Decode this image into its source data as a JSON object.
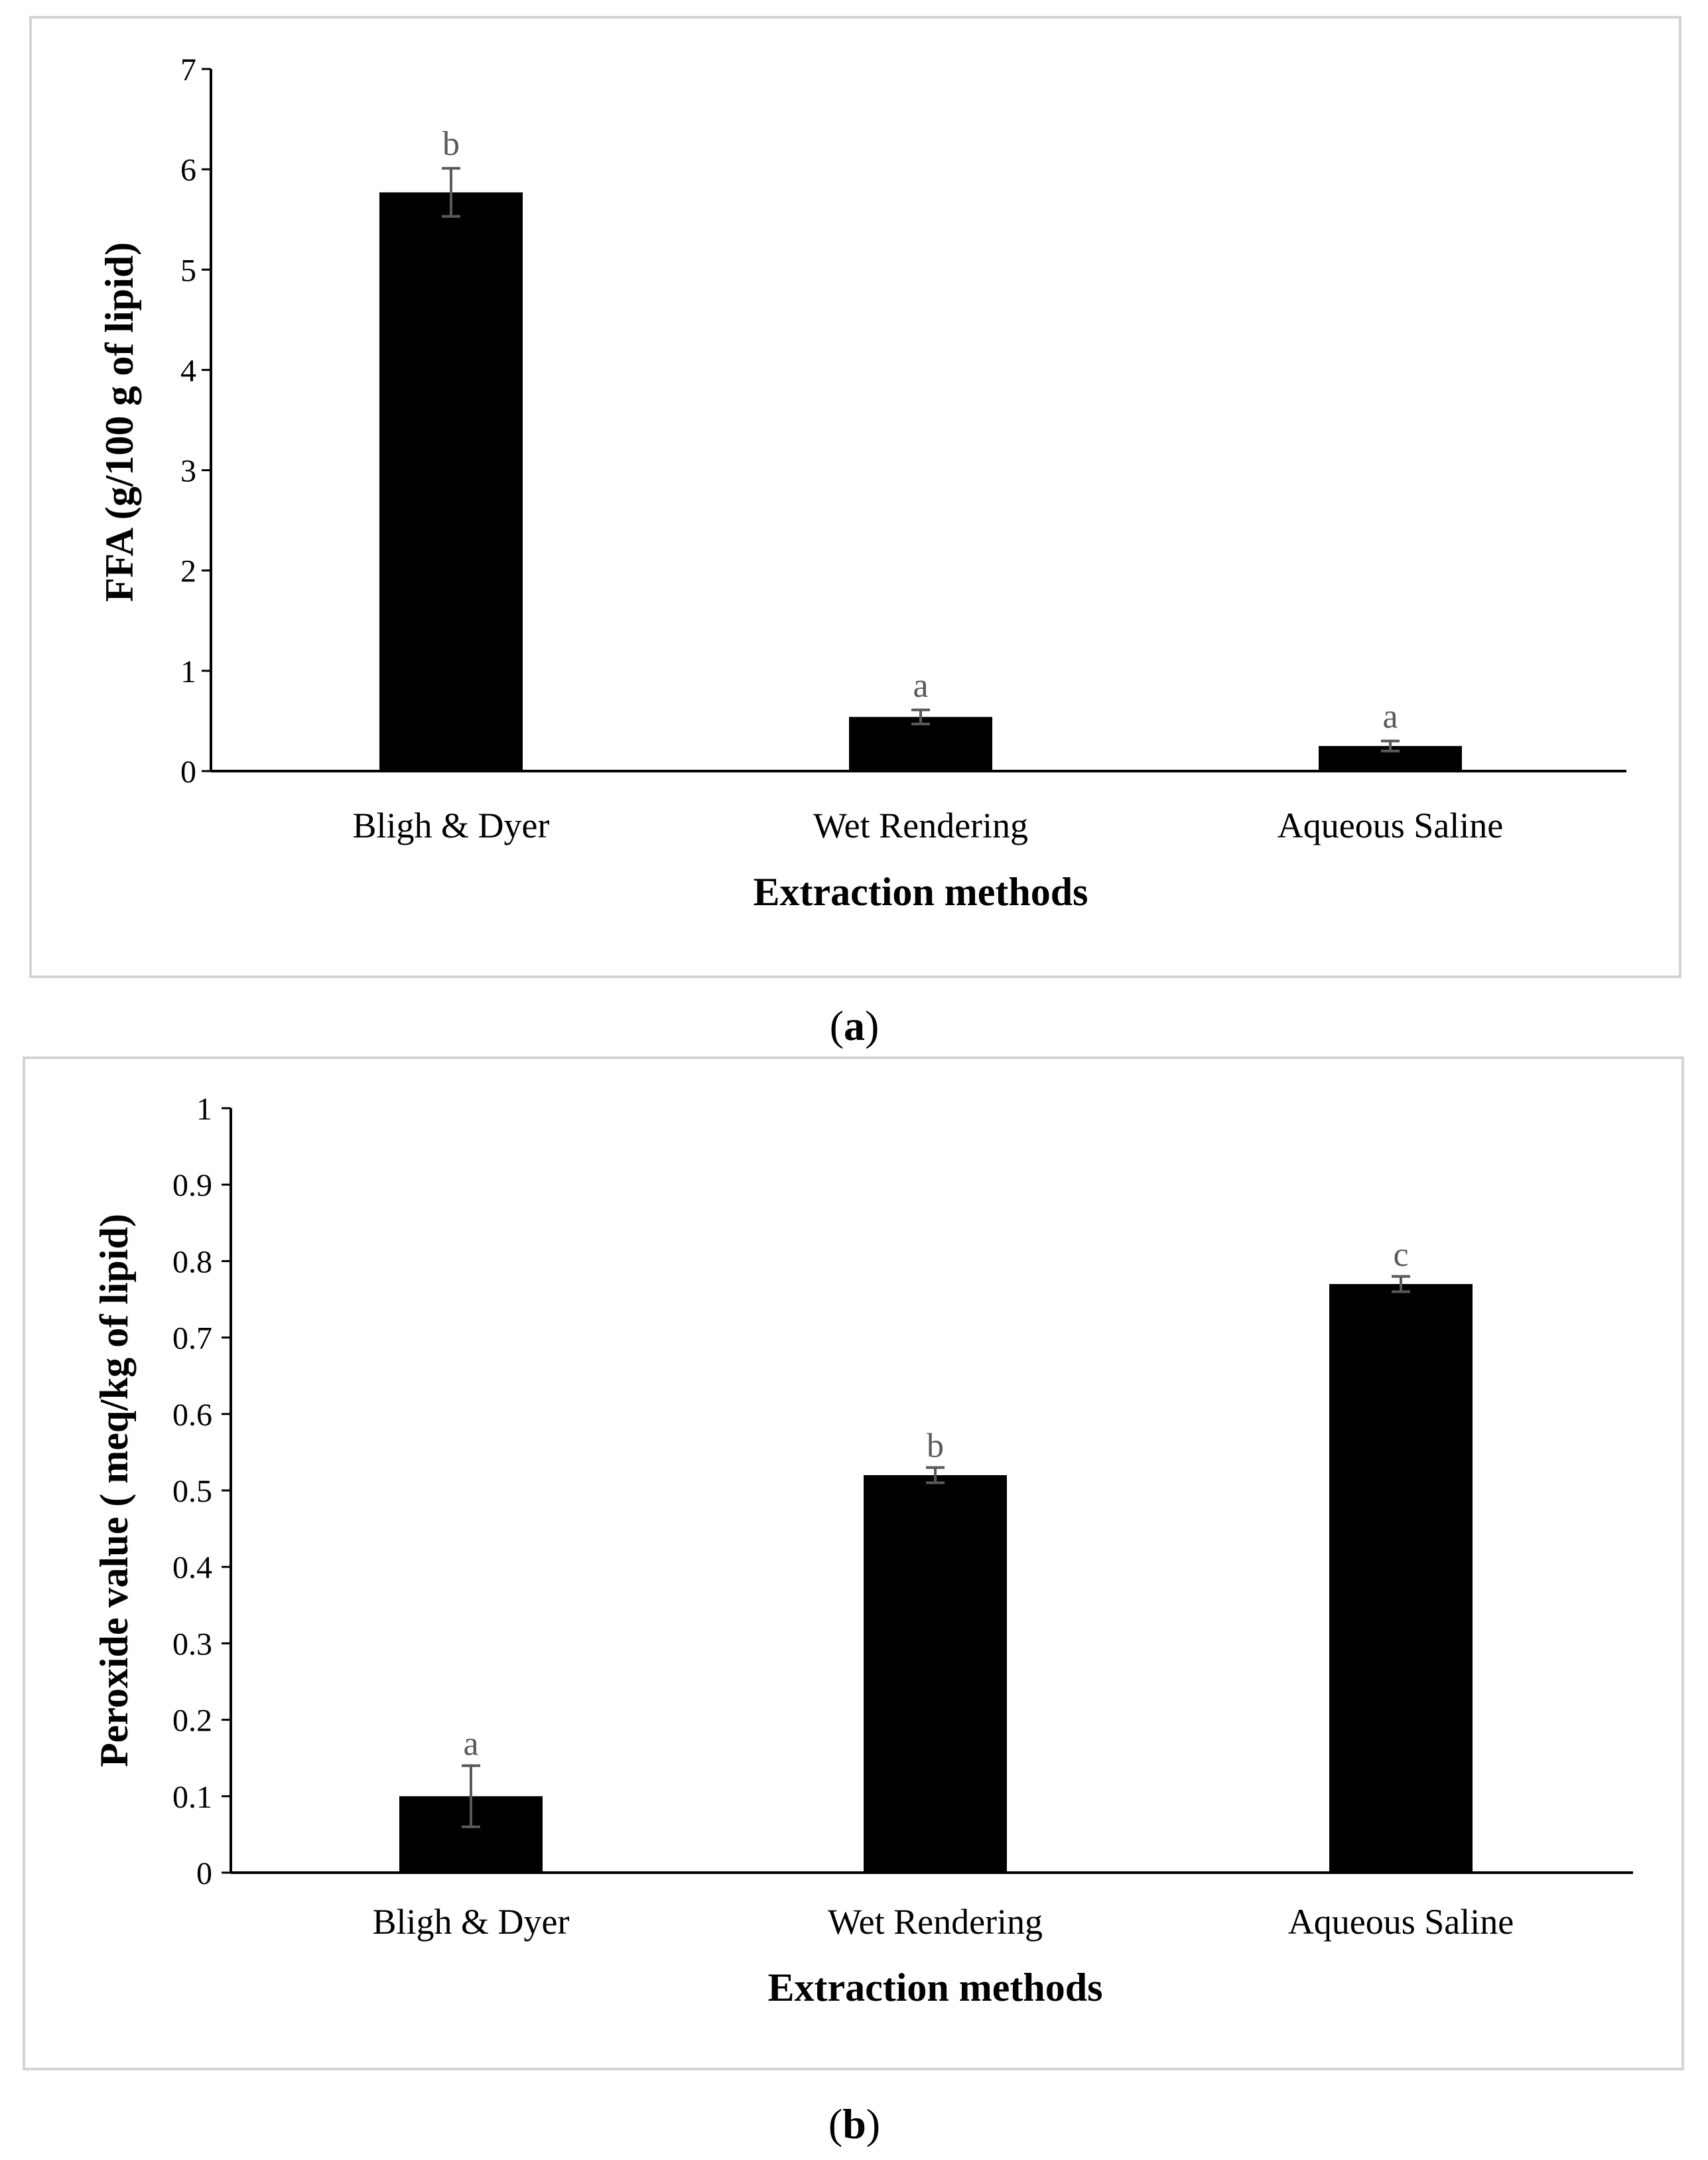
{
  "chart_data": [
    {
      "type": "bar",
      "panel_label": "a",
      "categories": [
        "Bligh & Dyer",
        "Wet Rendering",
        "Aqueous Saline"
      ],
      "values": [
        5.77,
        0.54,
        0.25
      ],
      "errors": [
        0.24,
        0.07,
        0.05
      ],
      "significance_letters": [
        "b",
        "a",
        "a"
      ],
      "xlabel": "Extraction methods",
      "ylabel": "FFA (g/100 g of lipid)",
      "ylim": [
        0,
        7
      ],
      "yticks": [
        0,
        1,
        2,
        3,
        4,
        5,
        6,
        7
      ],
      "ytick_labels": [
        "0",
        "1",
        "2",
        "3",
        "4",
        "5",
        "6",
        "7"
      ],
      "grid": false,
      "bar_color": "#000000",
      "error_color": "#595959"
    },
    {
      "type": "bar",
      "panel_label": "b",
      "categories": [
        "Bligh & Dyer",
        "Wet Rendering",
        "Aqueous Saline"
      ],
      "values": [
        0.1,
        0.52,
        0.77
      ],
      "errors": [
        0.04,
        0.01,
        0.01
      ],
      "significance_letters": [
        "a",
        "b",
        "c"
      ],
      "xlabel": "Extraction methods",
      "ylabel": "Peroxide value ( meq/kg of lipid)",
      "ylim": [
        0,
        1
      ],
      "yticks": [
        0,
        0.1,
        0.2,
        0.3,
        0.4,
        0.5,
        0.6,
        0.7,
        0.8,
        0.9,
        1
      ],
      "ytick_labels": [
        "0",
        "0.1",
        "0.2",
        "0.3",
        "0.4",
        "0.5",
        "0.6",
        "0.7",
        "0.8",
        "0.9",
        "1"
      ],
      "grid": false,
      "bar_color": "#000000",
      "error_color": "#595959"
    }
  ]
}
